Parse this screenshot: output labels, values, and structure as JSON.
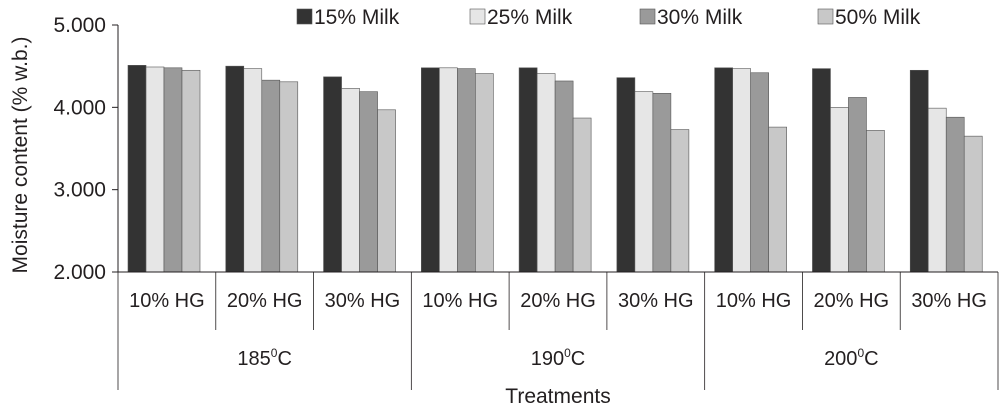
{
  "chart_data": {
    "type": "bar",
    "title": "",
    "xlabel": "Treatments",
    "ylabel": "Moisture content (% w.b.)",
    "ylim": [
      2.0,
      5.0
    ],
    "yticks": [
      "2.000",
      "3.000",
      "4.000",
      "5.000"
    ],
    "grid": false,
    "legend_position": "top",
    "temperatures": [
      "185",
      "190",
      "200"
    ],
    "temperature_unit": "0C",
    "categories": [
      "10% HG",
      "20% HG",
      "30% HG",
      "10% HG",
      "20% HG",
      "30% HG",
      "10% HG",
      "20% HG",
      "30% HG"
    ],
    "series": [
      {
        "name": "15% Milk",
        "color": "#333333",
        "values": [
          4.51,
          4.5,
          4.37,
          4.48,
          4.48,
          4.36,
          4.48,
          4.47,
          4.45
        ]
      },
      {
        "name": "25% Milk",
        "color": "#e6e6e6",
        "values": [
          4.49,
          4.47,
          4.23,
          4.48,
          4.41,
          4.19,
          4.47,
          4.0,
          3.99
        ]
      },
      {
        "name": "30% Milk",
        "color": "#9a9a9a",
        "values": [
          4.48,
          4.33,
          4.19,
          4.47,
          4.32,
          4.17,
          4.42,
          4.12,
          3.88
        ]
      },
      {
        "name": "50% Milk",
        "color": "#c8c8c8",
        "values": [
          4.45,
          4.31,
          3.97,
          4.41,
          3.87,
          3.73,
          3.76,
          3.72,
          3.65
        ]
      }
    ]
  }
}
